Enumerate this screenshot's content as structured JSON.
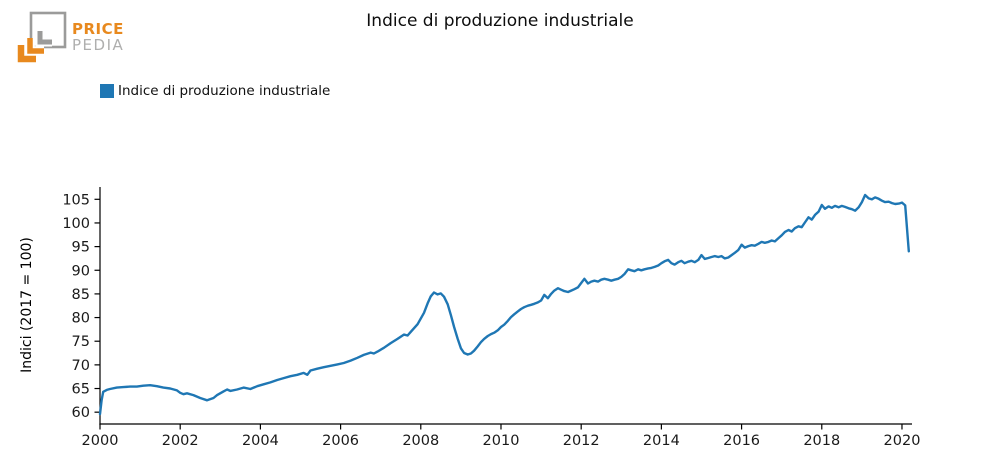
{
  "logo": {
    "line1": "PRICE",
    "line2": "PEDIA",
    "orange": "#E8891E",
    "gray": "#9B9B9A"
  },
  "header": {
    "title": "Indice di produzione industriale"
  },
  "legend": {
    "label": "Indice di produzione industriale",
    "swatch_color": "#1f77b4"
  },
  "chart_data": {
    "type": "line",
    "title": "Indice di produzione industriale",
    "xlabel": "",
    "ylabel": "Indici (2017 = 100)",
    "grid": false,
    "legend_position": "top-left-above-axes",
    "xlim": [
      2000,
      2020.25
    ],
    "ylim": [
      57.5,
      107.6
    ],
    "xticks": [
      2000,
      2002,
      2004,
      2006,
      2008,
      2010,
      2012,
      2014,
      2016,
      2018,
      2020
    ],
    "yticks": [
      60,
      65,
      70,
      75,
      80,
      85,
      90,
      95,
      100,
      105
    ],
    "axis_color": "#000000",
    "tick_label_color": "#1a1a1a",
    "series": [
      {
        "name": "Indice di produzione industriale",
        "color": "#1f77b4",
        "points": [
          [
            2000.0,
            59.6
          ],
          [
            2000.04,
            62.5
          ],
          [
            2000.08,
            64.3
          ],
          [
            2000.17,
            64.7
          ],
          [
            2000.25,
            64.9
          ],
          [
            2000.42,
            65.2
          ],
          [
            2000.58,
            65.3
          ],
          [
            2000.75,
            65.4
          ],
          [
            2000.92,
            65.4
          ],
          [
            2001.08,
            65.6
          ],
          [
            2001.25,
            65.7
          ],
          [
            2001.42,
            65.5
          ],
          [
            2001.58,
            65.2
          ],
          [
            2001.75,
            65.0
          ],
          [
            2001.92,
            64.6
          ],
          [
            2002.0,
            64.1
          ],
          [
            2002.08,
            63.8
          ],
          [
            2002.17,
            64.0
          ],
          [
            2002.33,
            63.6
          ],
          [
            2002.5,
            63.0
          ],
          [
            2002.67,
            62.5
          ],
          [
            2002.83,
            63.0
          ],
          [
            2002.92,
            63.6
          ],
          [
            2003.08,
            64.4
          ],
          [
            2003.17,
            64.8
          ],
          [
            2003.25,
            64.5
          ],
          [
            2003.42,
            64.8
          ],
          [
            2003.58,
            65.2
          ],
          [
            2003.75,
            64.9
          ],
          [
            2003.92,
            65.5
          ],
          [
            2004.08,
            65.9
          ],
          [
            2004.25,
            66.3
          ],
          [
            2004.42,
            66.8
          ],
          [
            2004.58,
            67.2
          ],
          [
            2004.75,
            67.6
          ],
          [
            2004.92,
            67.9
          ],
          [
            2005.08,
            68.3
          ],
          [
            2005.17,
            67.9
          ],
          [
            2005.25,
            68.8
          ],
          [
            2005.42,
            69.2
          ],
          [
            2005.58,
            69.5
          ],
          [
            2005.75,
            69.8
          ],
          [
            2005.92,
            70.1
          ],
          [
            2006.08,
            70.4
          ],
          [
            2006.25,
            70.9
          ],
          [
            2006.42,
            71.5
          ],
          [
            2006.58,
            72.1
          ],
          [
            2006.75,
            72.6
          ],
          [
            2006.83,
            72.4
          ],
          [
            2006.92,
            72.8
          ],
          [
            2007.08,
            73.6
          ],
          [
            2007.25,
            74.6
          ],
          [
            2007.42,
            75.5
          ],
          [
            2007.58,
            76.4
          ],
          [
            2007.67,
            76.2
          ],
          [
            2007.75,
            77.0
          ],
          [
            2007.92,
            78.6
          ],
          [
            2008.08,
            81.0
          ],
          [
            2008.17,
            83.0
          ],
          [
            2008.25,
            84.5
          ],
          [
            2008.33,
            85.3
          ],
          [
            2008.42,
            84.9
          ],
          [
            2008.5,
            85.1
          ],
          [
            2008.58,
            84.4
          ],
          [
            2008.67,
            82.8
          ],
          [
            2008.75,
            80.5
          ],
          [
            2008.83,
            78.0
          ],
          [
            2008.92,
            75.5
          ],
          [
            2009.0,
            73.5
          ],
          [
            2009.08,
            72.5
          ],
          [
            2009.17,
            72.2
          ],
          [
            2009.25,
            72.4
          ],
          [
            2009.33,
            73.0
          ],
          [
            2009.42,
            73.9
          ],
          [
            2009.5,
            74.8
          ],
          [
            2009.58,
            75.5
          ],
          [
            2009.67,
            76.1
          ],
          [
            2009.75,
            76.5
          ],
          [
            2009.83,
            76.8
          ],
          [
            2009.92,
            77.3
          ],
          [
            2010.0,
            78.0
          ],
          [
            2010.08,
            78.5
          ],
          [
            2010.17,
            79.3
          ],
          [
            2010.25,
            80.1
          ],
          [
            2010.33,
            80.7
          ],
          [
            2010.42,
            81.3
          ],
          [
            2010.5,
            81.8
          ],
          [
            2010.58,
            82.2
          ],
          [
            2010.67,
            82.5
          ],
          [
            2010.75,
            82.7
          ],
          [
            2010.83,
            82.9
          ],
          [
            2010.92,
            83.2
          ],
          [
            2011.0,
            83.6
          ],
          [
            2011.08,
            84.8
          ],
          [
            2011.17,
            84.1
          ],
          [
            2011.25,
            85.0
          ],
          [
            2011.33,
            85.7
          ],
          [
            2011.42,
            86.2
          ],
          [
            2011.5,
            85.9
          ],
          [
            2011.58,
            85.6
          ],
          [
            2011.67,
            85.4
          ],
          [
            2011.75,
            85.7
          ],
          [
            2011.83,
            86.0
          ],
          [
            2011.92,
            86.4
          ],
          [
            2012.0,
            87.3
          ],
          [
            2012.08,
            88.2
          ],
          [
            2012.17,
            87.2
          ],
          [
            2012.25,
            87.6
          ],
          [
            2012.33,
            87.8
          ],
          [
            2012.42,
            87.6
          ],
          [
            2012.5,
            88.0
          ],
          [
            2012.58,
            88.2
          ],
          [
            2012.67,
            88.0
          ],
          [
            2012.75,
            87.8
          ],
          [
            2012.83,
            88.0
          ],
          [
            2012.92,
            88.2
          ],
          [
            2013.0,
            88.6
          ],
          [
            2013.08,
            89.2
          ],
          [
            2013.17,
            90.2
          ],
          [
            2013.25,
            90.0
          ],
          [
            2013.33,
            89.8
          ],
          [
            2013.42,
            90.2
          ],
          [
            2013.5,
            90.0
          ],
          [
            2013.58,
            90.2
          ],
          [
            2013.67,
            90.4
          ],
          [
            2013.75,
            90.5
          ],
          [
            2013.83,
            90.7
          ],
          [
            2013.92,
            91.0
          ],
          [
            2014.0,
            91.5
          ],
          [
            2014.08,
            91.9
          ],
          [
            2014.17,
            92.2
          ],
          [
            2014.25,
            91.5
          ],
          [
            2014.33,
            91.2
          ],
          [
            2014.42,
            91.7
          ],
          [
            2014.5,
            92.0
          ],
          [
            2014.58,
            91.5
          ],
          [
            2014.67,
            91.8
          ],
          [
            2014.75,
            92.0
          ],
          [
            2014.83,
            91.7
          ],
          [
            2014.92,
            92.2
          ],
          [
            2015.0,
            93.2
          ],
          [
            2015.08,
            92.4
          ],
          [
            2015.17,
            92.6
          ],
          [
            2015.25,
            92.8
          ],
          [
            2015.33,
            93.0
          ],
          [
            2015.42,
            92.8
          ],
          [
            2015.5,
            93.0
          ],
          [
            2015.58,
            92.5
          ],
          [
            2015.67,
            92.7
          ],
          [
            2015.75,
            93.2
          ],
          [
            2015.83,
            93.7
          ],
          [
            2015.92,
            94.3
          ],
          [
            2016.0,
            95.4
          ],
          [
            2016.08,
            94.8
          ],
          [
            2016.17,
            95.1
          ],
          [
            2016.25,
            95.3
          ],
          [
            2016.33,
            95.2
          ],
          [
            2016.42,
            95.6
          ],
          [
            2016.5,
            96.0
          ],
          [
            2016.58,
            95.8
          ],
          [
            2016.67,
            96.0
          ],
          [
            2016.75,
            96.3
          ],
          [
            2016.83,
            96.1
          ],
          [
            2016.92,
            96.8
          ],
          [
            2017.0,
            97.4
          ],
          [
            2017.08,
            98.1
          ],
          [
            2017.17,
            98.5
          ],
          [
            2017.25,
            98.2
          ],
          [
            2017.33,
            98.9
          ],
          [
            2017.42,
            99.3
          ],
          [
            2017.5,
            99.1
          ],
          [
            2017.58,
            100.1
          ],
          [
            2017.67,
            101.2
          ],
          [
            2017.75,
            100.7
          ],
          [
            2017.83,
            101.7
          ],
          [
            2017.92,
            102.4
          ],
          [
            2018.0,
            103.8
          ],
          [
            2018.08,
            103.0
          ],
          [
            2018.17,
            103.5
          ],
          [
            2018.25,
            103.2
          ],
          [
            2018.33,
            103.6
          ],
          [
            2018.42,
            103.3
          ],
          [
            2018.5,
            103.6
          ],
          [
            2018.58,
            103.4
          ],
          [
            2018.67,
            103.1
          ],
          [
            2018.75,
            102.9
          ],
          [
            2018.83,
            102.6
          ],
          [
            2018.92,
            103.3
          ],
          [
            2019.0,
            104.4
          ],
          [
            2019.08,
            105.9
          ],
          [
            2019.17,
            105.2
          ],
          [
            2019.25,
            105.0
          ],
          [
            2019.33,
            105.4
          ],
          [
            2019.42,
            105.1
          ],
          [
            2019.5,
            104.7
          ],
          [
            2019.58,
            104.4
          ],
          [
            2019.67,
            104.5
          ],
          [
            2019.75,
            104.2
          ],
          [
            2019.83,
            104.0
          ],
          [
            2019.92,
            104.1
          ],
          [
            2020.0,
            104.3
          ],
          [
            2020.08,
            103.7
          ],
          [
            2020.17,
            94.0
          ]
        ]
      }
    ]
  }
}
